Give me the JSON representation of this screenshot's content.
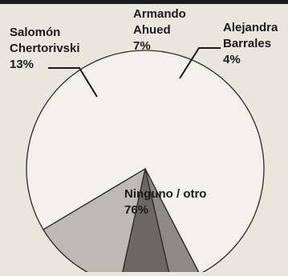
{
  "chart_data": {
    "type": "pie",
    "slices": [
      {
        "label": "Ninguno / otro",
        "value": 76,
        "value_label": "76%",
        "color": "#f3f1ec"
      },
      {
        "label": "Salomón Chertorivski",
        "value": 13,
        "value_label": "13%",
        "color": "#bdbab3"
      },
      {
        "label": "Armando Ahued",
        "value": 7,
        "value_label": "7%",
        "color": "#6a6863"
      },
      {
        "label": "Alejandra Barrales",
        "value": 4,
        "value_label": "4%",
        "color": "#8d8b86"
      }
    ],
    "label_lines": {
      "Salomón Chertorivski": [
        "Salomón",
        "Chertorivski",
        "13%"
      ],
      "Armando Ahued": [
        "Armando",
        "Ahued",
        "7%"
      ],
      "Alejandra Barrales": [
        "Alejandra",
        "Barrales",
        "4%"
      ],
      "Ninguno / otro": [
        "Ninguno / otro",
        "76%"
      ]
    }
  }
}
